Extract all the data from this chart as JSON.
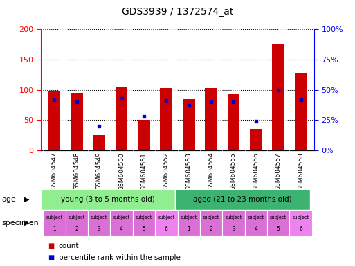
{
  "title": "GDS3939 / 1372574_at",
  "gsm_labels": [
    "GSM604547",
    "GSM604548",
    "GSM604549",
    "GSM604550",
    "GSM604551",
    "GSM604552",
    "GSM604553",
    "GSM604554",
    "GSM604555",
    "GSM604556",
    "GSM604557",
    "GSM604558"
  ],
  "count_values": [
    98,
    95,
    25,
    105,
    50,
    103,
    85,
    103,
    93,
    35,
    175,
    128
  ],
  "percentile_values": [
    42,
    40,
    20,
    43,
    28,
    41,
    37,
    40,
    40,
    24,
    50,
    42
  ],
  "bar_color": "#CC0000",
  "dot_color": "#0000CC",
  "ylim_left": [
    0,
    200
  ],
  "ylim_right": [
    0,
    100
  ],
  "yticks_left": [
    0,
    50,
    100,
    150,
    200
  ],
  "yticks_right": [
    0,
    25,
    50,
    75,
    100
  ],
  "yticklabels_right": [
    "0%",
    "25%",
    "50%",
    "75%",
    "100%"
  ],
  "age_young_label": "young (3 to 5 months old)",
  "age_aged_label": "aged (21 to 23 months old)",
  "age_color": "#90EE90",
  "subject_labels_top": [
    "subject",
    "subject",
    "subject",
    "subject",
    "subject",
    "subject",
    "subject",
    "subject",
    "subject",
    "subject",
    "subject",
    "subject"
  ],
  "subject_labels_bot": [
    "1",
    "2",
    "3",
    "4",
    "5",
    "6",
    "1",
    "2",
    "3",
    "4",
    "5",
    "6"
  ],
  "subject_colors": [
    "#DA70D6",
    "#DA70D6",
    "#DA70D6",
    "#DA70D6",
    "#DA70D6",
    "#EE82EE",
    "#DA70D6",
    "#DA70D6",
    "#DA70D6",
    "#DA70D6",
    "#DA70D6",
    "#EE82EE"
  ],
  "tick_bg_color": "#d3d3d3",
  "legend_count_color": "#CC0000",
  "legend_pct_color": "#0000CC"
}
